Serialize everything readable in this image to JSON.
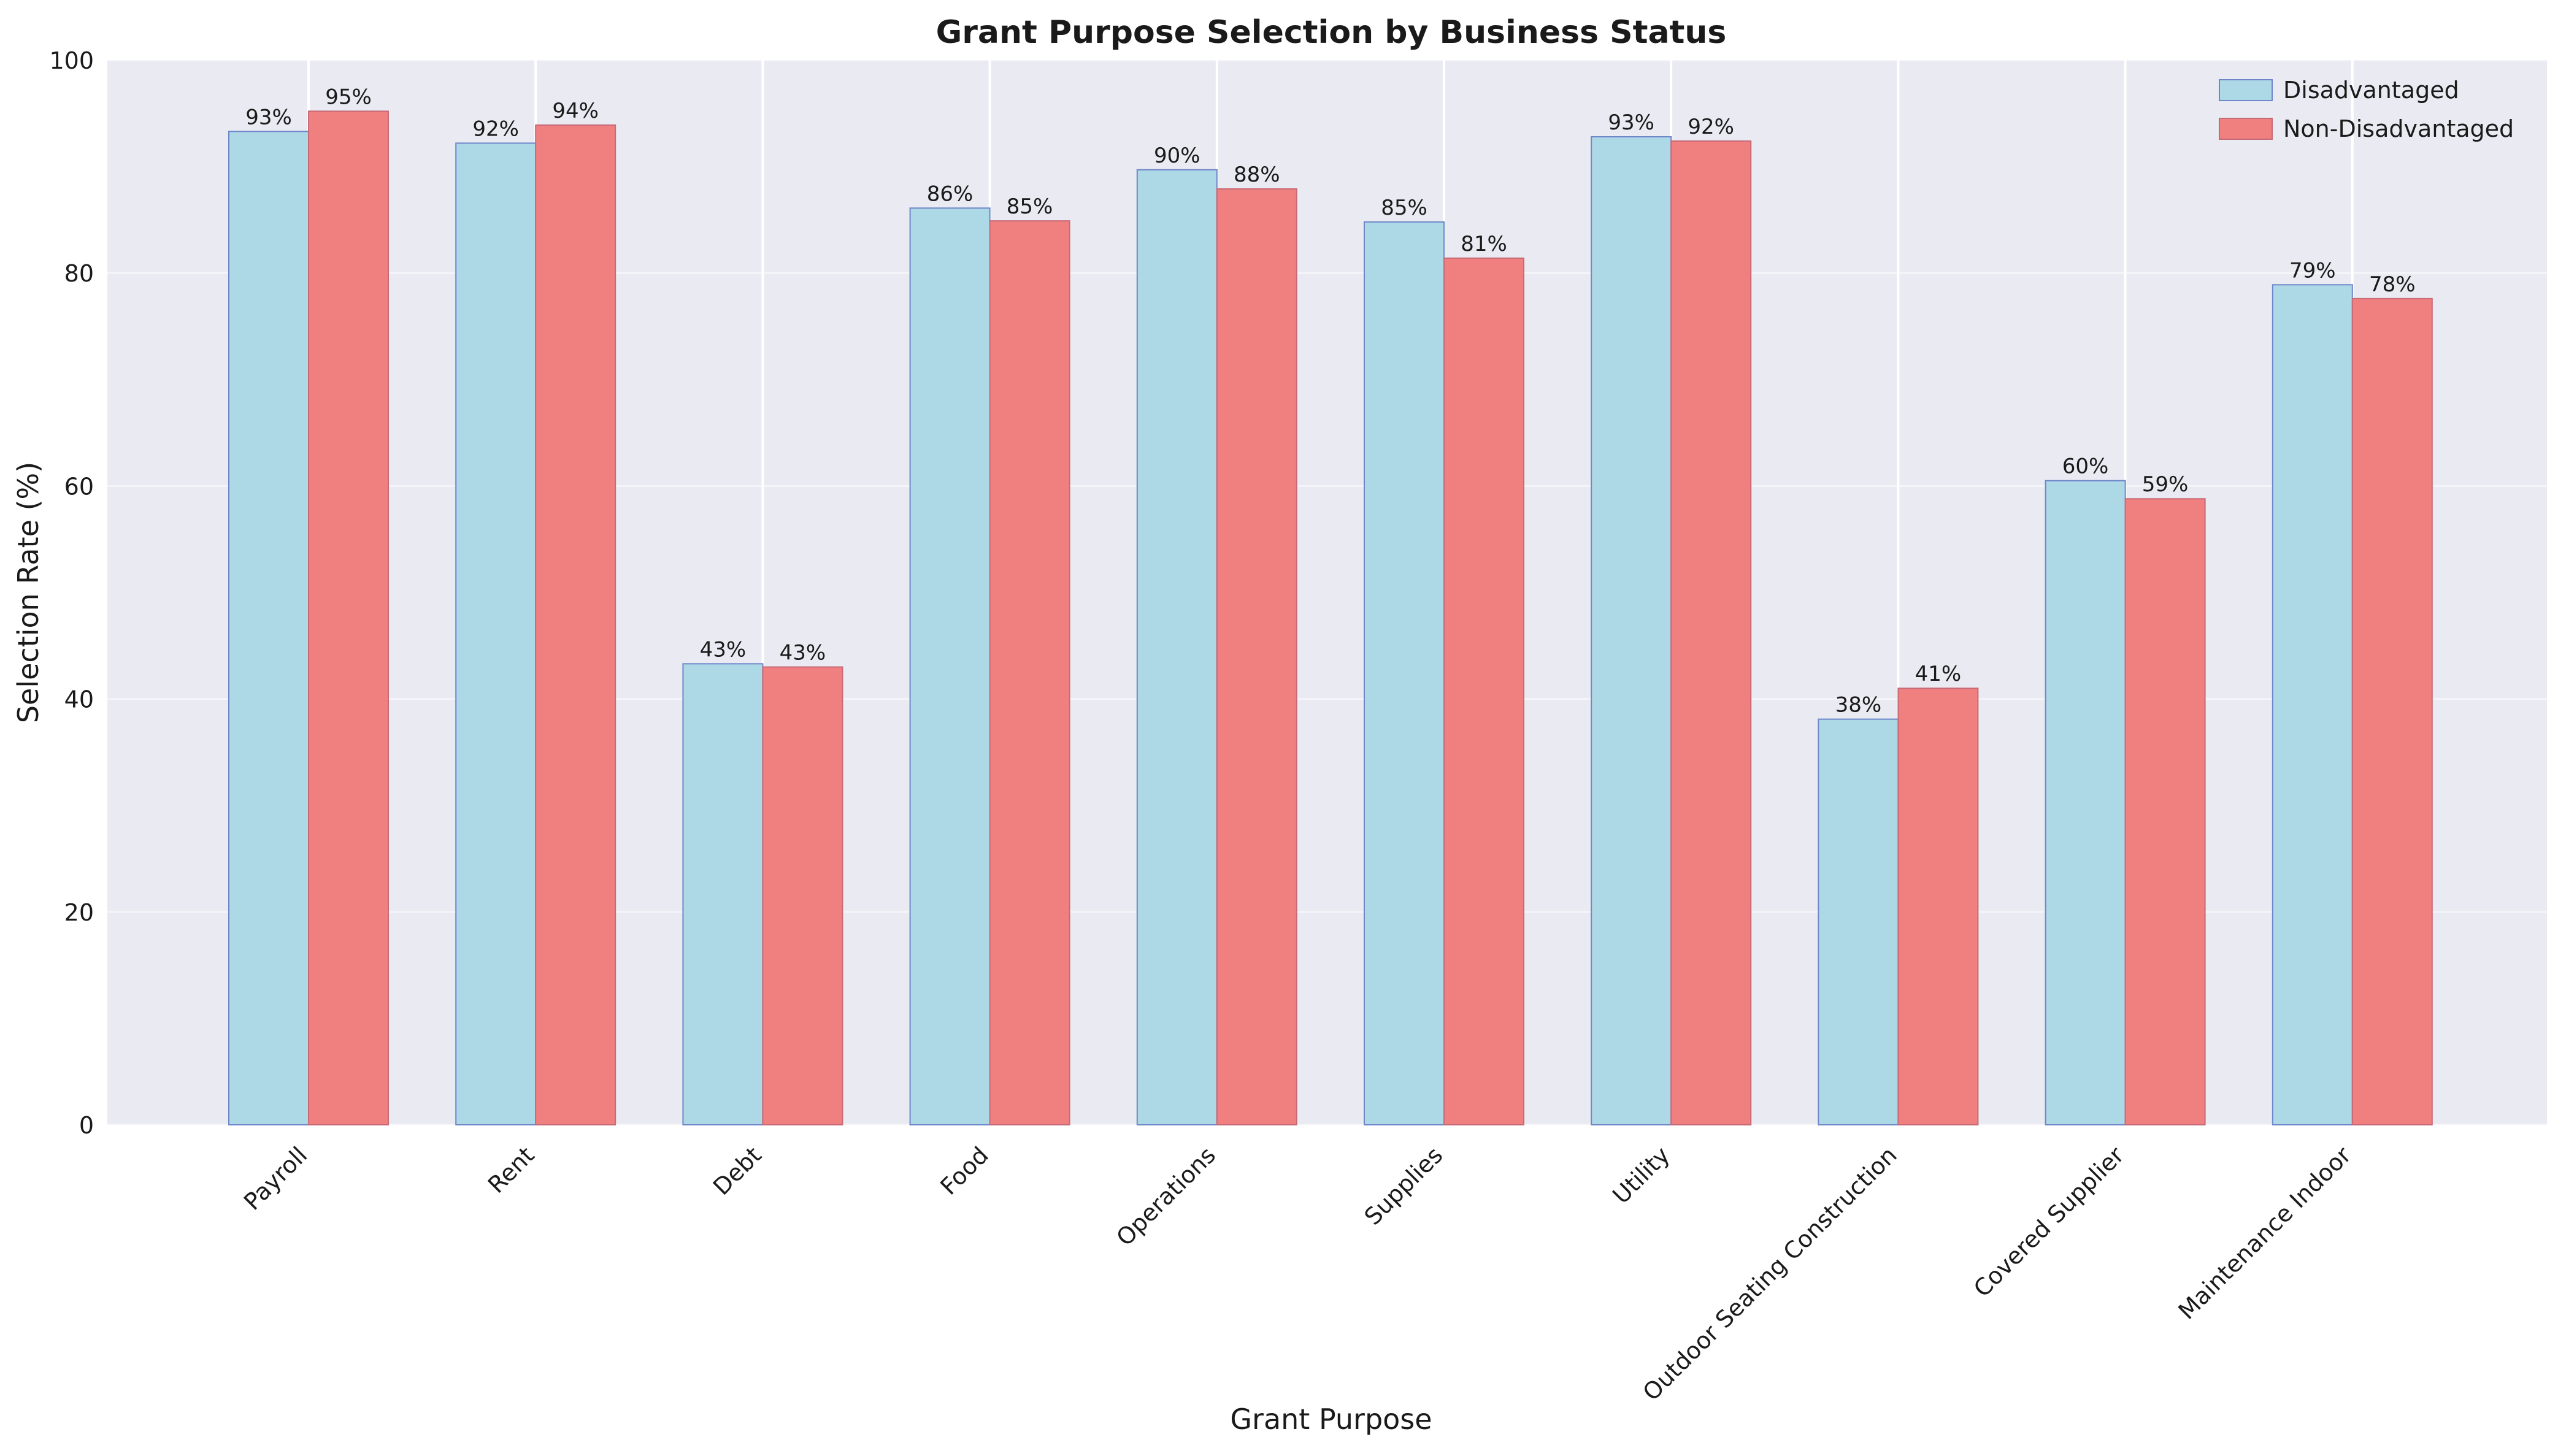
{
  "chart_data": {
    "type": "bar",
    "title": "Grant Purpose Selection by Business Status",
    "xlabel": "Grant Purpose",
    "ylabel": "Selection Rate (%)",
    "ylim": [
      0,
      100
    ],
    "yticks": [
      0,
      20,
      40,
      60,
      80,
      100
    ],
    "grid": true,
    "legend_position": "top-right",
    "categories": [
      "Payroll",
      "Rent",
      "Debt",
      "Food",
      "Operations",
      "Supplies",
      "Utility",
      "Outdoor Seating Construction",
      "Covered Supplier",
      "Maintenance Indoor"
    ],
    "series": [
      {
        "name": "Disadvantaged",
        "color": "#add8e6",
        "edge_color": "#6f86c9",
        "values": [
          93.3,
          92.2,
          43.3,
          86.1,
          89.7,
          84.8,
          92.8,
          38.1,
          60.5,
          78.9
        ],
        "labels": [
          "93%",
          "92%",
          "43%",
          "86%",
          "90%",
          "85%",
          "93%",
          "38%",
          "60%",
          "79%"
        ]
      },
      {
        "name": "Non-Disadvantaged",
        "color": "#f08080",
        "edge_color": "#c76a77",
        "values": [
          95.2,
          93.9,
          43.0,
          84.9,
          87.9,
          81.4,
          92.4,
          41.0,
          58.8,
          77.6
        ],
        "labels": [
          "95%",
          "94%",
          "43%",
          "85%",
          "88%",
          "81%",
          "92%",
          "41%",
          "59%",
          "78%"
        ]
      }
    ]
  },
  "colors": {
    "plot_background": "#eaeaf2",
    "grid": "#ffffff"
  }
}
